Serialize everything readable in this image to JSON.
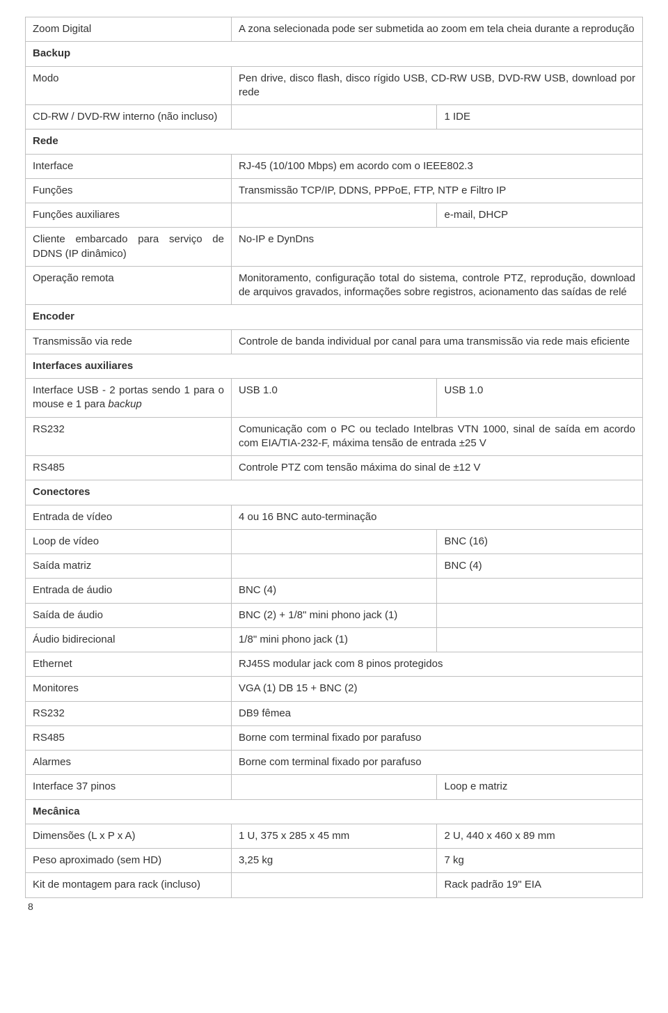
{
  "sections": {
    "zoom_digital": {
      "label": "Zoom Digital",
      "value": "A zona selecionada pode ser submetida ao zoom em tela cheia durante a reprodução"
    },
    "backup": {
      "header": "Backup",
      "modo": {
        "label": "Modo",
        "value": "Pen drive, disco flash, disco rígido USB, CD-RW USB, DVD-RW USB, download por rede"
      },
      "cdrw": {
        "label": "CD-RW / DVD-RW interno (não incluso)",
        "right": "1 IDE"
      }
    },
    "rede": {
      "header": "Rede",
      "interface": {
        "label": "Interface",
        "value": "RJ-45 (10/100 Mbps) em acordo com o IEEE802.3"
      },
      "funcoes": {
        "label": "Funções",
        "value": "Transmissão TCP/IP, DDNS, PPPoE, FTP, NTP e Filtro IP"
      },
      "funcoes_aux": {
        "label": "Funções auxiliares",
        "right": "e-mail, DHCP"
      },
      "ddns": {
        "label": "Cliente embarcado para serviço de DDNS (IP dinâmico)",
        "value": "No-IP e DynDns"
      },
      "oper_remota": {
        "label": "Operação remota",
        "value": "Monitoramento, configuração total do sistema, controle PTZ, reprodução, download de arquivos gravados, informações sobre registros, acionamento das saídas de relé"
      }
    },
    "encoder": {
      "header": "Encoder",
      "trans_rede": {
        "label": "Transmissão via rede",
        "value": "Controle de banda individual por canal para uma transmissão via rede mais eficiente"
      }
    },
    "ifaux": {
      "header": "Interfaces auxiliares",
      "usb": {
        "label_pre": "Interface USB - 2 portas sendo 1 para o mouse e 1 para ",
        "label_ital": "backup",
        "mid": "USB 1.0",
        "right": "USB 1.0"
      },
      "rs232": {
        "label": "RS232",
        "value": "Comunicação com o PC ou teclado Intelbras VTN 1000, sinal de saída em acordo com EIA/TIA-232-F, máxima tensão de entrada ±25 V"
      },
      "rs485": {
        "label": "RS485",
        "value": "Controle PTZ com tensão máxima do sinal de ±12 V"
      }
    },
    "conectores": {
      "header": "Conectores",
      "entrada_video": {
        "label": "Entrada de vídeo",
        "value": "4 ou 16 BNC auto-terminação"
      },
      "loop_video": {
        "label": "Loop de vídeo",
        "right": "BNC (16)"
      },
      "saida_matriz": {
        "label": "Saída matriz",
        "right": "BNC (4)"
      },
      "entrada_audio": {
        "label": "Entrada de áudio",
        "mid": "BNC (4)"
      },
      "saida_audio": {
        "label": "Saída de áudio",
        "value": "BNC (2) + 1/8\" mini phono jack (1)"
      },
      "audio_bidir": {
        "label": "Áudio bidirecional",
        "value": "1/8\" mini phono jack (1)"
      },
      "ethernet": {
        "label": "Ethernet",
        "value": "RJ45S modular jack com 8 pinos protegidos"
      },
      "monitores": {
        "label": "Monitores",
        "value": "VGA (1) DB 15 + BNC (2)"
      },
      "rs232c": {
        "label": "RS232",
        "value": "DB9 fêmea"
      },
      "rs485c": {
        "label": "RS485",
        "value": "Borne com terminal fixado por parafuso"
      },
      "alarmes": {
        "label": "Alarmes",
        "value": "Borne com terminal fixado por parafuso"
      },
      "if37": {
        "label": "Interface 37 pinos",
        "right": "Loop e matriz"
      }
    },
    "mecanica": {
      "header": "Mecânica",
      "dim": {
        "label": "Dimensões (L x P x A)",
        "mid": "1 U, 375 x 285 x 45 mm",
        "right": "2 U, 440 x 460 x 89 mm"
      },
      "peso": {
        "label": "Peso aproximado (sem HD)",
        "mid": "3,25 kg",
        "right": "7 kg"
      },
      "kit": {
        "label": "Kit de montagem para rack (incluso)",
        "right": "Rack padrão 19\" EIA"
      }
    }
  },
  "page_number": "8"
}
